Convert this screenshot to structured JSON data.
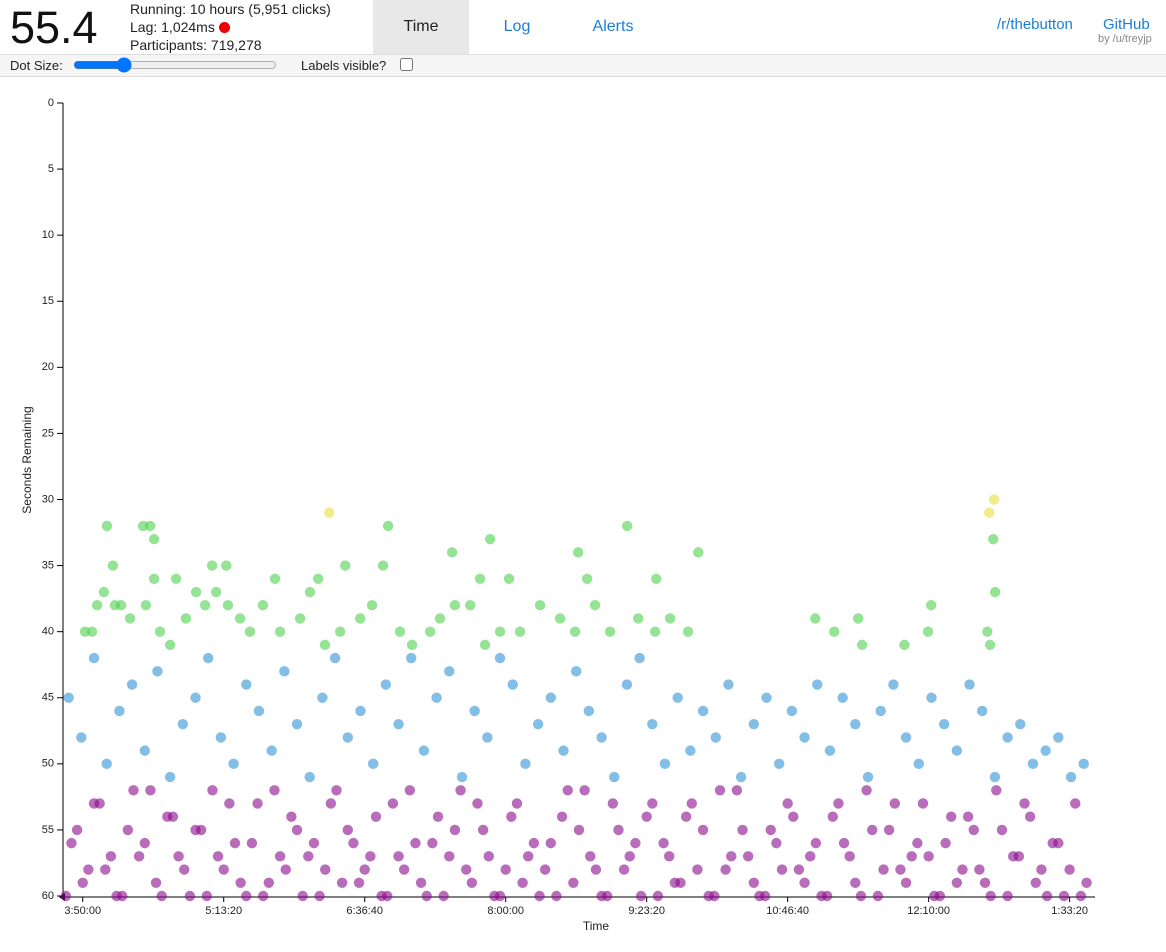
{
  "header": {
    "timer": "55.4",
    "running": "Running: 10 hours (5,951 clicks)",
    "lag": "Lag: 1,024ms",
    "participants": "Participants: 719,278",
    "tabs": [
      "Time",
      "Log",
      "Alerts"
    ],
    "links": [
      "/r/thebutton",
      "GitHub"
    ],
    "byline": "by /u/treyjp"
  },
  "controls": {
    "dot_size": "Dot Size:",
    "labels_visible": "Labels visible?"
  },
  "chart_data": {
    "type": "scatter",
    "x_label": "Time",
    "y_label": "Seconds Remaining",
    "xlim": [
      13100,
      49700
    ],
    "ylim": [
      0,
      60
    ],
    "y_reversed": true,
    "xticks": [
      {
        "value": 13800,
        "label": "3:50:00"
      },
      {
        "value": 18800,
        "label": "5:13:20"
      },
      {
        "value": 23800,
        "label": "6:36:40"
      },
      {
        "value": 28800,
        "label": "8:00:00"
      },
      {
        "value": 33800,
        "label": "9:23:20"
      },
      {
        "value": 38800,
        "label": "10:46:40"
      },
      {
        "value": 43800,
        "label": "12:10:00"
      },
      {
        "value": 48800,
        "label": "1:33:20"
      }
    ],
    "yticks": [
      0,
      5,
      10,
      15,
      20,
      25,
      30,
      35,
      40,
      45,
      50,
      55,
      60
    ],
    "series": [
      {
        "color": "#8b0a8b",
        "x": [
          13200,
          13600,
          14000,
          14400,
          14800,
          15200,
          15600,
          16000,
          16400,
          16800,
          17200,
          17600,
          18000,
          18400,
          18800,
          19200,
          19600,
          20000,
          20400,
          20800,
          21200,
          21600,
          22000,
          22400,
          22800,
          23200,
          23600,
          24000,
          24400,
          24800,
          25200,
          25600,
          26000,
          26400,
          26800,
          27200,
          27600,
          28000,
          28400,
          28800,
          29200,
          29600,
          30000,
          30400,
          30800,
          31200,
          31600,
          32000,
          32400,
          32800,
          33200,
          33600,
          34000,
          34400,
          34800,
          35200,
          35600,
          36000,
          36400,
          36800,
          37200,
          37600,
          38000,
          38400,
          38800,
          39200,
          39600,
          40000,
          40400,
          40800,
          41200,
          41600,
          42000,
          42400,
          42800,
          43200,
          43600,
          44000,
          44400,
          44800,
          45200,
          45600,
          46000,
          46400,
          46800,
          47200,
          47600,
          48000,
          48400,
          48800,
          49200
        ],
        "values": [
          60,
          55,
          58,
          53,
          57,
          60,
          52,
          56,
          59,
          54,
          57,
          60,
          55,
          52,
          58,
          56,
          60,
          53,
          59,
          57,
          54,
          60,
          56,
          58,
          52,
          55,
          59,
          57,
          60,
          53,
          58,
          56,
          60,
          54,
          57,
          52,
          59,
          55,
          60,
          58,
          53,
          57,
          60,
          56,
          54,
          59,
          52,
          58,
          60,
          55,
          57,
          60,
          53,
          56,
          59,
          54,
          58,
          60,
          52,
          57,
          55,
          59,
          60,
          56,
          53,
          58,
          57,
          60,
          54,
          56,
          59,
          52,
          60,
          55,
          58,
          57,
          53,
          60,
          56,
          59,
          54,
          58,
          60,
          55,
          57,
          53,
          59,
          60,
          56,
          58,
          60
        ]
      },
      {
        "color": "#8b0a8b",
        "x": [
          13400,
          13800,
          14200,
          14600,
          15000,
          15400,
          15800,
          16200,
          16600,
          17000,
          17400,
          17800,
          18200,
          18600,
          19000,
          19400,
          19800,
          20200,
          20600,
          21000,
          21400,
          21800,
          22200,
          22600,
          23000,
          23400,
          23800,
          24200,
          24600,
          25000,
          25400,
          25800,
          26200,
          26600,
          27000,
          27400,
          27800,
          28200,
          28600,
          29000,
          29400,
          29800,
          30200,
          30600,
          31000,
          31400,
          31800,
          32200,
          32600,
          33000,
          33400,
          33800,
          34200,
          34600,
          35000,
          35400,
          35800,
          36200,
          36600,
          37000,
          37400,
          37800,
          38200,
          38600,
          39000,
          39400,
          39800,
          40200,
          40600,
          41000,
          41400,
          41800,
          42200,
          42600,
          43000,
          43400,
          43800,
          44200,
          44600,
          45000,
          45400,
          45800,
          46200,
          46600,
          47000,
          47400,
          47800,
          48200,
          48600,
          49000,
          49400
        ],
        "values": [
          56,
          59,
          53,
          58,
          60,
          55,
          57,
          52,
          60,
          54,
          58,
          55,
          60,
          57,
          53,
          59,
          56,
          60,
          52,
          58,
          55,
          57,
          60,
          53,
          59,
          56,
          58,
          54,
          60,
          57,
          52,
          59,
          56,
          60,
          55,
          58,
          53,
          57,
          60,
          54,
          59,
          56,
          58,
          60,
          52,
          55,
          57,
          60,
          53,
          58,
          56,
          54,
          60,
          57,
          59,
          53,
          55,
          60,
          58,
          52,
          57,
          60,
          55,
          58,
          54,
          59,
          56,
          60,
          53,
          57,
          60,
          55,
          58,
          53,
          59,
          56,
          57,
          60,
          54,
          58,
          55,
          59,
          52,
          60,
          57,
          54,
          58,
          56,
          60,
          53,
          59
        ]
      },
      {
        "color": "#2e93d6",
        "x": [
          13300,
          13750,
          14200,
          14650,
          15100,
          15550,
          16000,
          16450,
          16900,
          17350,
          17800,
          18250,
          18700,
          19150,
          19600,
          20050,
          20500,
          20950,
          21400,
          21850,
          22300,
          22750,
          23200,
          23650,
          24100,
          24550,
          25000,
          25450,
          25900,
          26350,
          26800,
          27250,
          27700,
          28150,
          28600,
          29050,
          29500,
          29950,
          30400,
          30850,
          31300,
          31750,
          32200,
          32650,
          33100,
          33550,
          34000,
          34450,
          34900,
          35350,
          35800,
          36250,
          36700,
          37150,
          37600,
          38050,
          38500,
          38950,
          39400,
          39850,
          40300,
          40750,
          41200,
          41650,
          42100,
          42550,
          43000,
          43450,
          43900,
          44350,
          44800,
          45250,
          45700,
          46150,
          46600,
          47050,
          47500,
          47950,
          48400,
          48850,
          49300
        ],
        "values": [
          45,
          48,
          42,
          50,
          46,
          44,
          49,
          43,
          51,
          47,
          45,
          42,
          48,
          50,
          44,
          46,
          49,
          43,
          47,
          51,
          45,
          42,
          48,
          46,
          50,
          44,
          47,
          42,
          49,
          45,
          43,
          51,
          46,
          48,
          42,
          44,
          50,
          47,
          45,
          49,
          43,
          46,
          48,
          51,
          44,
          42,
          47,
          50,
          45,
          49,
          46,
          48,
          44,
          51,
          47,
          45,
          50,
          46,
          48,
          44,
          49,
          45,
          47,
          51,
          46,
          44,
          48,
          50,
          45,
          47,
          49,
          44,
          46,
          51,
          48,
          47,
          50,
          49,
          48,
          51,
          50
        ]
      },
      {
        "color": "#4fd14f",
        "x": [
          14660,
          15940,
          16190,
          16330,
          14870,
          16330,
          17110,
          18390,
          18890,
          20620,
          22150,
          23110,
          24630,
          24450,
          26900,
          28250,
          27890,
          28920,
          31370,
          31690,
          33110,
          34140,
          35630,
          13880,
          14130,
          14310,
          14550,
          14940,
          15160,
          15480,
          16040,
          16540,
          16900,
          17460,
          17820,
          18140,
          18530,
          18950,
          19380,
          19730,
          20190,
          20800,
          21510,
          21860,
          22390,
          22930,
          23640,
          24060,
          25050,
          25480,
          26120,
          26470,
          27000,
          27540,
          28070,
          28600,
          29310,
          30020,
          30730,
          31260,
          31970,
          32500,
          33500,
          34100,
          34630,
          35270,
          39780,
          41300,
          40450,
          41440,
          42940,
          43890,
          43780,
          45880,
          45980,
          46090,
          46160
        ],
        "values": [
          32,
          32,
          32,
          33,
          35,
          36,
          36,
          35,
          35,
          36,
          36,
          35,
          32,
          35,
          34,
          33,
          36,
          36,
          34,
          36,
          32,
          36,
          34,
          40,
          40,
          38,
          37,
          38,
          38,
          39,
          38,
          40,
          41,
          39,
          37,
          38,
          37,
          38,
          39,
          40,
          38,
          40,
          39,
          37,
          41,
          40,
          39,
          38,
          40,
          41,
          40,
          39,
          38,
          38,
          41,
          40,
          40,
          38,
          39,
          40,
          38,
          40,
          39,
          40,
          39,
          40,
          39,
          39,
          40,
          41,
          41,
          38,
          40,
          40,
          41,
          33,
          37
        ]
      },
      {
        "color": "#e8df3a",
        "x": [
          22540,
          45950,
          46120
        ],
        "values": [
          31,
          31,
          30
        ]
      }
    ]
  }
}
